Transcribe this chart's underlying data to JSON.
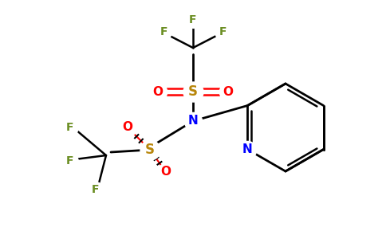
{
  "bg_color": "#ffffff",
  "colors": {
    "C": "#000000",
    "N_amide": "#0000ff",
    "N_py": "#0000ff",
    "O": "#ff0000",
    "S": "#b8860b",
    "F": "#6b8e23"
  },
  "figsize": [
    4.84,
    3.0
  ],
  "dpi": 100
}
